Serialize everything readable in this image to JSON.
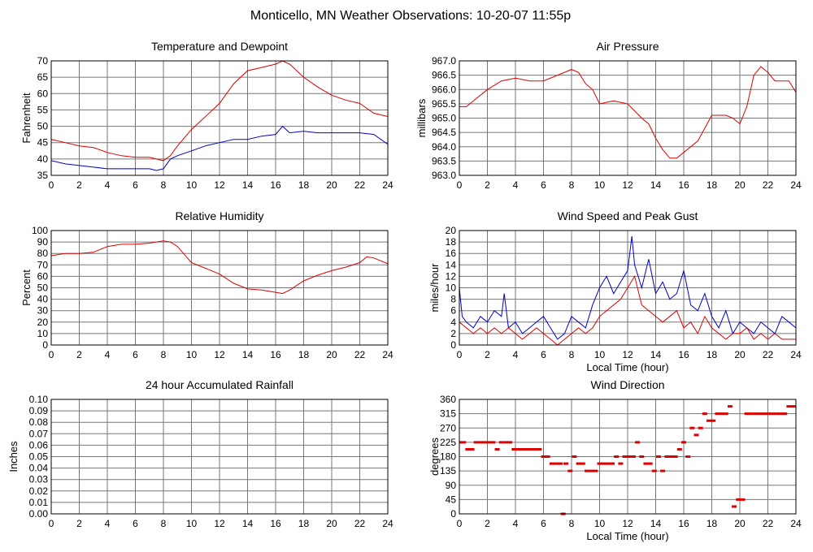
{
  "page_title": "Monticello, MN Weather Observations: 10-20-07 11:55p",
  "colors": {
    "red": "#dd0000",
    "blue": "#0000cc",
    "grid": "#777777"
  },
  "chart_data": [
    {
      "type": "line",
      "title": "Temperature and Dewpoint",
      "xlabel": "",
      "ylabel": "Fahrenheit",
      "xlim": [
        0,
        24
      ],
      "ylim": [
        35,
        70
      ],
      "xticks": [
        "0",
        "2",
        "4",
        "6",
        "8",
        "10",
        "12",
        "14",
        "16",
        "18",
        "20",
        "22",
        "24"
      ],
      "yticks": [
        "35",
        "40",
        "45",
        "50",
        "55",
        "60",
        "65",
        "70"
      ],
      "grid": true,
      "series": [
        {
          "color": "red",
          "x": [
            0,
            1,
            2,
            3,
            4,
            5,
            6,
            7,
            7.5,
            8,
            8.5,
            9,
            10,
            11,
            12,
            13,
            14,
            15,
            16,
            16.5,
            17,
            18,
            19,
            20,
            21,
            22,
            23,
            24
          ],
          "y": [
            46,
            45,
            44,
            43.5,
            42,
            41,
            40.5,
            40.5,
            40,
            39.5,
            41,
            44,
            49,
            53,
            57,
            63,
            67,
            68,
            69,
            70,
            69,
            65,
            62,
            59.5,
            58,
            57,
            54,
            53
          ]
        },
        {
          "color": "blue",
          "x": [
            0,
            1,
            2,
            3,
            4,
            5,
            6,
            7,
            7.5,
            8,
            8.5,
            9,
            10,
            11,
            12,
            13,
            14,
            15,
            16,
            16.5,
            17,
            18,
            19,
            20,
            21,
            22,
            23,
            24
          ],
          "y": [
            39.5,
            38.5,
            38,
            37.5,
            37,
            37,
            37,
            37,
            36.5,
            37,
            40,
            41,
            42.5,
            44,
            45,
            46,
            46,
            47,
            47.5,
            50,
            48,
            48.5,
            48,
            48,
            48,
            48,
            47.5,
            44.5
          ]
        }
      ]
    },
    {
      "type": "line",
      "title": "Air Pressure",
      "xlabel": "",
      "ylabel": "millibars",
      "xlim": [
        0,
        24
      ],
      "ylim": [
        963.0,
        967.0
      ],
      "xticks": [
        "0",
        "2",
        "4",
        "6",
        "8",
        "10",
        "12",
        "14",
        "16",
        "18",
        "20",
        "22",
        "24"
      ],
      "yticks": [
        "963.0",
        "963.5",
        "964.0",
        "964.5",
        "965.0",
        "965.5",
        "966.0",
        "966.5",
        "967.0"
      ],
      "grid": true,
      "series": [
        {
          "color": "red",
          "x": [
            0,
            0.5,
            1,
            2,
            3,
            4,
            5,
            6,
            7,
            8,
            8.5,
            9,
            9.5,
            10,
            11,
            12,
            13,
            13.5,
            14,
            14.5,
            15,
            15.5,
            16,
            17,
            18,
            19,
            19.5,
            20,
            20.5,
            21,
            21.5,
            22,
            22.5,
            23,
            23.5,
            24
          ],
          "y": [
            965.4,
            965.4,
            965.6,
            966.0,
            966.3,
            966.4,
            966.3,
            966.3,
            966.5,
            966.7,
            966.6,
            966.2,
            966.0,
            965.5,
            965.6,
            965.5,
            965.0,
            964.8,
            964.3,
            963.9,
            963.6,
            963.6,
            963.8,
            964.2,
            965.1,
            965.1,
            965.0,
            964.8,
            965.4,
            966.5,
            966.8,
            966.6,
            966.3,
            966.3,
            966.3,
            965.9
          ]
        }
      ]
    },
    {
      "type": "line",
      "title": "Relative Humidity",
      "xlabel": "",
      "ylabel": "Percent",
      "xlim": [
        0,
        24
      ],
      "ylim": [
        0,
        100
      ],
      "xticks": [
        "0",
        "2",
        "4",
        "6",
        "8",
        "10",
        "12",
        "14",
        "16",
        "18",
        "20",
        "22",
        "24"
      ],
      "yticks": [
        "0",
        "10",
        "20",
        "30",
        "40",
        "50",
        "60",
        "70",
        "80",
        "90",
        "100"
      ],
      "grid": true,
      "series": [
        {
          "color": "red",
          "x": [
            0,
            1,
            2,
            3,
            4,
            5,
            6,
            7,
            8,
            8.5,
            9,
            10,
            11,
            12,
            13,
            14,
            15,
            16,
            16.5,
            17,
            18,
            19,
            20,
            21,
            22,
            22.5,
            23,
            24
          ],
          "y": [
            78,
            80,
            80,
            81,
            86,
            88,
            88,
            89,
            91,
            90,
            86,
            72,
            67,
            62,
            54,
            49,
            48,
            46,
            45,
            48,
            56,
            61,
            65,
            68,
            72,
            77,
            76,
            71
          ]
        }
      ]
    },
    {
      "type": "line",
      "title": "Wind Speed and Peak Gust",
      "xlabel": "Local Time (hour)",
      "ylabel": "miles/hour",
      "xlim": [
        0,
        24
      ],
      "ylim": [
        0,
        20
      ],
      "xticks": [
        "0",
        "2",
        "4",
        "6",
        "8",
        "10",
        "12",
        "14",
        "16",
        "18",
        "20",
        "22",
        "24"
      ],
      "yticks": [
        "0",
        "2",
        "4",
        "6",
        "8",
        "10",
        "12",
        "14",
        "16",
        "18",
        "20"
      ],
      "grid": true,
      "series": [
        {
          "color": "blue",
          "x": [
            0,
            0.2,
            0.5,
            1,
            1.5,
            2,
            2.5,
            3,
            3.2,
            3.5,
            4,
            4.5,
            5,
            5.5,
            6,
            6.5,
            7,
            7.5,
            8,
            8.5,
            9,
            9.5,
            10,
            10.5,
            11,
            11.5,
            12,
            12.3,
            12.5,
            13,
            13.5,
            14,
            14.5,
            15,
            15.5,
            16,
            16.5,
            17,
            17.5,
            18,
            18.5,
            19,
            19.5,
            20,
            20.5,
            21,
            21.5,
            22,
            22.5,
            23,
            23.5,
            24
          ],
          "y": [
            10,
            5,
            4,
            3,
            5,
            4,
            6,
            5,
            9,
            3,
            4,
            2,
            3,
            4,
            5,
            3,
            1,
            2,
            5,
            4,
            3,
            7,
            10,
            12,
            9,
            11,
            13,
            19,
            14,
            10,
            15,
            9,
            11,
            8,
            9,
            13,
            7,
            6,
            9,
            5,
            3,
            6,
            2,
            4,
            3,
            2,
            4,
            3,
            2,
            5,
            4,
            3
          ]
        },
        {
          "color": "red",
          "x": [
            0,
            0.5,
            1,
            1.5,
            2,
            2.5,
            3,
            3.5,
            4,
            4.5,
            5,
            5.5,
            6,
            6.5,
            7,
            7.5,
            8,
            8.5,
            9,
            9.5,
            10,
            10.5,
            11,
            11.5,
            12,
            12.5,
            13,
            13.5,
            14,
            14.5,
            15,
            15.5,
            16,
            16.5,
            17,
            17.5,
            18,
            18.5,
            19,
            19.5,
            20,
            20.5,
            21,
            21.5,
            22,
            22.5,
            23,
            23.5,
            24
          ],
          "y": [
            4,
            3,
            2,
            3,
            2,
            3,
            2,
            3,
            2,
            1,
            2,
            3,
            2,
            1,
            0,
            1,
            2,
            3,
            2,
            3,
            5,
            6,
            7,
            8,
            10,
            12,
            7,
            6,
            5,
            4,
            5,
            6,
            3,
            4,
            2,
            5,
            3,
            2,
            1,
            2,
            2,
            3,
            1,
            2,
            1,
            2,
            1,
            1,
            1
          ]
        }
      ]
    },
    {
      "type": "line",
      "title": "24 hour Accumulated Rainfall",
      "xlabel": "",
      "ylabel": "Inches",
      "xlim": [
        0,
        24
      ],
      "ylim": [
        0,
        0.1
      ],
      "xticks": [
        "0",
        "2",
        "4",
        "6",
        "8",
        "10",
        "12",
        "14",
        "16",
        "18",
        "20",
        "22",
        "24"
      ],
      "yticks": [
        "0.00",
        "0.01",
        "0.02",
        "0.03",
        "0.04",
        "0.05",
        "0.06",
        "0.07",
        "0.08",
        "0.09",
        "0.10"
      ],
      "grid": true,
      "series": [
        {
          "color": "red",
          "x": [
            0,
            24
          ],
          "y": [
            0,
            0
          ]
        }
      ]
    },
    {
      "type": "scatter",
      "title": "Wind Direction",
      "xlabel": "Local Time (hour)",
      "ylabel": "degrees",
      "xlim": [
        0,
        24
      ],
      "ylim": [
        0,
        360
      ],
      "xticks": [
        "0",
        "2",
        "4",
        "6",
        "8",
        "10",
        "12",
        "14",
        "16",
        "18",
        "20",
        "22",
        "24"
      ],
      "yticks": [
        "0",
        "45",
        "90",
        "135",
        "180",
        "225",
        "270",
        "315",
        "360"
      ],
      "grid": true,
      "series": [
        {
          "color": "red",
          "x": [
            0,
            0.3,
            0.6,
            0.9,
            1.2,
            1.5,
            1.8,
            2.1,
            2.4,
            2.7,
            3.0,
            3.3,
            3.6,
            3.9,
            4.2,
            4.5,
            4.8,
            5.1,
            5.4,
            5.7,
            6.0,
            6.3,
            6.6,
            6.9,
            7.2,
            7.4,
            7.6,
            7.9,
            8.2,
            8.5,
            8.8,
            9.1,
            9.4,
            9.7,
            10.0,
            10.3,
            10.6,
            10.9,
            11.2,
            11.5,
            11.8,
            12.1,
            12.4,
            12.7,
            13.0,
            13.3,
            13.6,
            13.9,
            14.2,
            14.5,
            14.8,
            15.1,
            15.4,
            15.7,
            16.0,
            16.3,
            16.6,
            16.9,
            17.2,
            17.5,
            17.8,
            18.1,
            18.4,
            18.7,
            19.0,
            19.3,
            19.6,
            19.9,
            20.2,
            20.5,
            20.8,
            21.1,
            21.4,
            21.7,
            22.0,
            22.3,
            22.6,
            22.9,
            23.2,
            23.5,
            23.8
          ],
          "y": [
            225,
            225,
            203,
            203,
            225,
            225,
            225,
            225,
            225,
            203,
            225,
            225,
            225,
            203,
            203,
            203,
            203,
            203,
            203,
            203,
            180,
            180,
            158,
            158,
            158,
            0,
            158,
            135,
            180,
            158,
            158,
            135,
            135,
            135,
            158,
            158,
            158,
            158,
            180,
            158,
            180,
            180,
            180,
            225,
            180,
            158,
            158,
            135,
            180,
            135,
            180,
            180,
            180,
            203,
            225,
            180,
            270,
            248,
            270,
            315,
            293,
            293,
            315,
            315,
            315,
            338,
            23,
            45,
            45,
            315,
            315,
            315,
            315,
            315,
            315,
            315,
            315,
            315,
            315,
            338,
            338
          ]
        }
      ]
    }
  ]
}
